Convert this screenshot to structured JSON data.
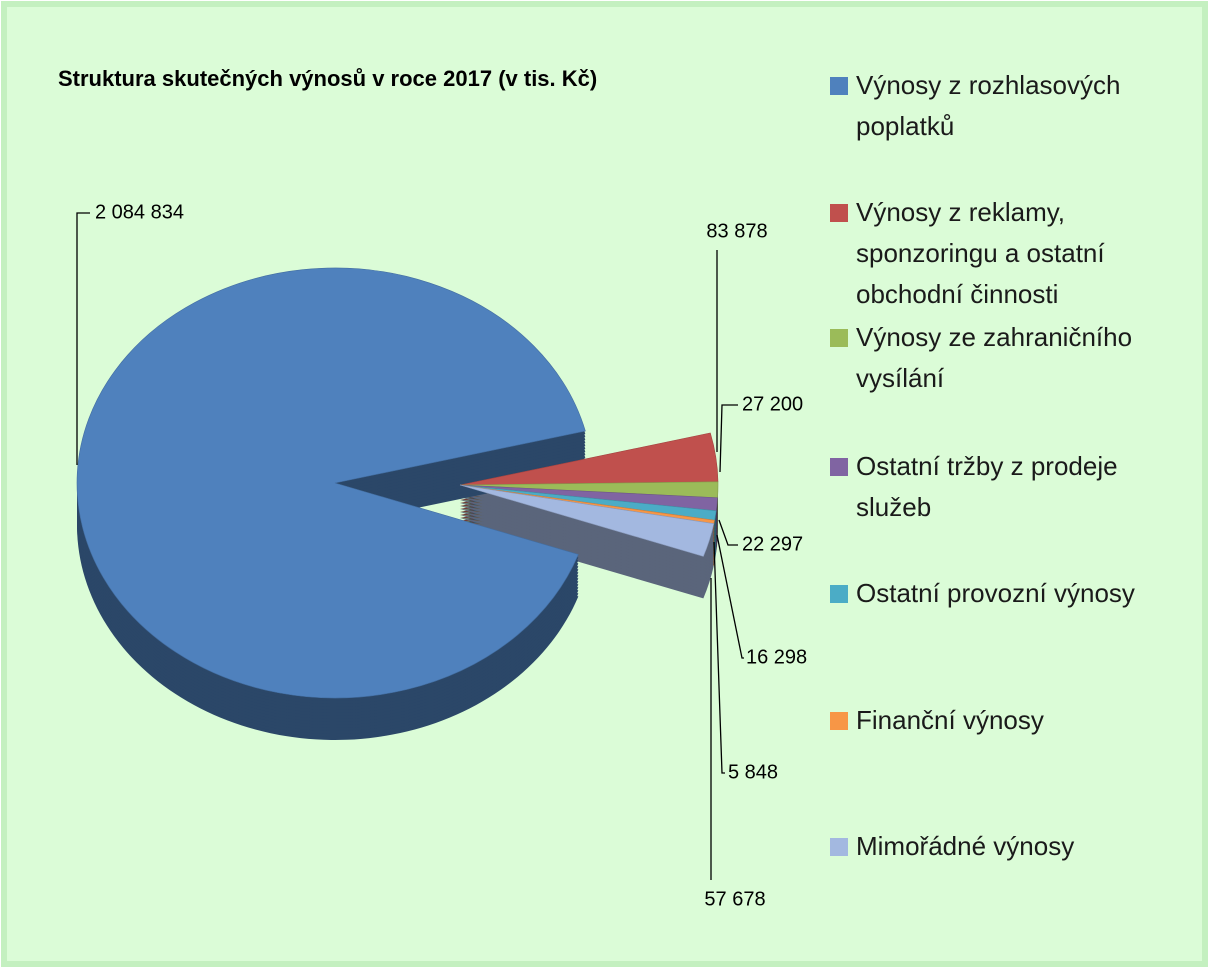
{
  "chart_data": {
    "type": "pie",
    "title": "Struktura skutečných výnosů v roce 2017  (v tis. Kč)",
    "categories": [
      "Výnosy z rozhlasových poplatků",
      "Výnosy z reklamy, sponzoringu a ostatní obchodní činnosti",
      "Výnosy ze zahraničního vysílání",
      "Ostatní tržby z prodeje služeb",
      "Ostatní provozní výnosy",
      "Finanční výnosy",
      "Mimořádné výnosy"
    ],
    "values": [
      2084834,
      83878,
      27200,
      22297,
      16298,
      5848,
      57678
    ],
    "value_labels": [
      "2 084 834",
      "83 878",
      "27 200",
      "22 297",
      "16 298",
      "5 848",
      "57 678"
    ],
    "colors": [
      "#4f81bd",
      "#c0504d",
      "#9bbb59",
      "#8064a2",
      "#4bacc6",
      "#f79646",
      "#a3b8e0"
    ],
    "legend": "right",
    "three_d": true
  }
}
